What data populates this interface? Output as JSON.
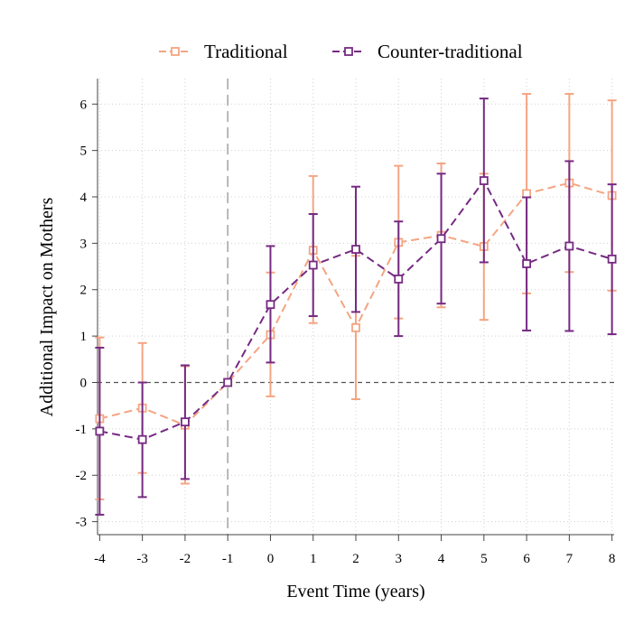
{
  "chart_data": {
    "type": "line",
    "xlabel": "Event Time (years)",
    "ylabel": "Additional Impact on Mothers",
    "x": [
      -4,
      -3,
      -2,
      -1,
      0,
      1,
      2,
      3,
      4,
      5,
      6,
      7,
      8
    ],
    "x_tick_labels": [
      "-4",
      "-3",
      "-2",
      "-1",
      "0",
      "1",
      "2",
      "3",
      "4",
      "5",
      "6",
      "7",
      "8"
    ],
    "y_tick_labels": [
      "-3",
      "-2",
      "-1",
      "0",
      "1",
      "2",
      "3",
      "4",
      "5",
      "6"
    ],
    "y_ticks": [
      -3,
      -2,
      -1,
      0,
      1,
      2,
      3,
      4,
      5,
      6
    ],
    "xlim": [
      -4.05,
      8.05
    ],
    "ylim": [
      -3.28,
      6.55
    ],
    "grid": true,
    "legend_position": "top",
    "reference_lines": {
      "vertical_x": -1,
      "horizontal_y": 0
    },
    "series": [
      {
        "name": "Traditional",
        "color": "#f4a582",
        "line_style": "dash",
        "marker": "hollow-square",
        "values": [
          -0.78,
          -0.55,
          -0.92,
          0,
          1.03,
          2.85,
          1.18,
          3.02,
          3.17,
          2.93,
          4.07,
          4.3,
          4.03
        ],
        "ci_low": [
          -2.52,
          -1.95,
          -2.18,
          0,
          -0.3,
          1.28,
          -0.36,
          1.38,
          1.62,
          1.35,
          1.92,
          2.38,
          1.98
        ],
        "ci_high": [
          0.97,
          0.85,
          0.35,
          0,
          2.37,
          4.45,
          2.73,
          4.67,
          4.72,
          4.5,
          6.22,
          6.22,
          6.08
        ]
      },
      {
        "name": "Counter-traditional",
        "color": "#762a83",
        "line_style": "dash",
        "marker": "hollow-square",
        "values": [
          -1.05,
          -1.23,
          -0.85,
          0,
          1.68,
          2.53,
          2.87,
          2.23,
          3.1,
          4.35,
          2.56,
          2.94,
          2.66
        ],
        "ci_low": [
          -2.85,
          -2.47,
          -2.08,
          0,
          0.43,
          1.43,
          1.52,
          1.0,
          1.7,
          2.59,
          1.12,
          1.11,
          1.04
        ],
        "ci_high": [
          0.75,
          0.0,
          0.37,
          0,
          2.94,
          3.63,
          4.22,
          3.47,
          4.5,
          6.12,
          3.99,
          4.77,
          4.27
        ]
      }
    ]
  }
}
